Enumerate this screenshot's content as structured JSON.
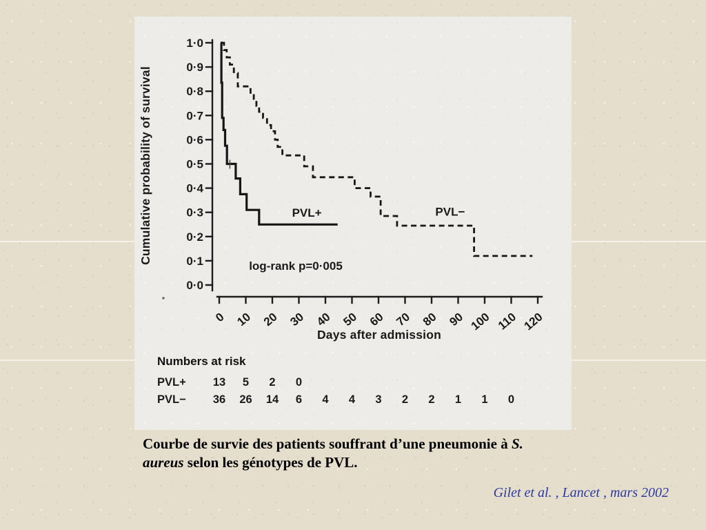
{
  "slide": {
    "caption": {
      "line1_roman": "Courbe de survie des patients souffrant d’une pneumonie à ",
      "line1_italic": "S.",
      "line2_italic": "aureus",
      "line2_roman": " selon les génotypes de PVL."
    },
    "credit": "Gilet et al. , Lancet , mars 2002",
    "colors": {
      "background": "#e5decc",
      "scan_background": "#edece9",
      "curve": "#161616",
      "caption_text": "#000000",
      "credit_text": "#2c3aa0"
    }
  },
  "chart_data": {
    "type": "line",
    "subtype": "kaplan-meier-step",
    "title": "",
    "xlabel": "Days after admission",
    "ylabel": "Cumulative probability of survival",
    "xlim": [
      0,
      120
    ],
    "ylim": [
      0.0,
      1.0
    ],
    "grid": "off",
    "x_ticks": [
      0,
      10,
      20,
      30,
      40,
      50,
      60,
      70,
      80,
      90,
      100,
      110,
      120
    ],
    "y_ticks": [
      {
        "value": 1.0,
        "label": "1·0"
      },
      {
        "value": 0.9,
        "label": "0·9"
      },
      {
        "value": 0.8,
        "label": "0·8"
      },
      {
        "value": 0.7,
        "label": "0·7"
      },
      {
        "value": 0.6,
        "label": "0·6"
      },
      {
        "value": 0.5,
        "label": "0·5"
      },
      {
        "value": 0.4,
        "label": "0·4"
      },
      {
        "value": 0.3,
        "label": "0·3"
      },
      {
        "value": 0.2,
        "label": "0·2"
      },
      {
        "value": 0.1,
        "label": "0·1"
      },
      {
        "value": 0.0,
        "label": "0·0"
      }
    ],
    "annotation": "log-rank p=0·005",
    "series": [
      {
        "name": "PVL+",
        "style": "solid",
        "label_pos": {
          "day": 33,
          "survival": 0.282
        },
        "steps": [
          [
            0.5,
            1.0
          ],
          [
            0.8,
            0.835
          ],
          [
            1.1,
            0.69
          ],
          [
            1.6,
            0.64
          ],
          [
            2.2,
            0.575
          ],
          [
            2.9,
            0.5
          ],
          [
            6.2,
            0.44
          ],
          [
            7.9,
            0.375
          ],
          [
            10.3,
            0.31
          ],
          [
            15,
            0.25
          ],
          [
            44.6,
            0.25
          ]
        ],
        "censor_marks": [
          {
            "day": 4,
            "survival": 0.5
          }
        ]
      },
      {
        "name": "PVL−",
        "style": "dashed",
        "label_pos": {
          "day": 87,
          "survival": 0.287
        },
        "steps": [
          [
            0.8,
            1.0
          ],
          [
            1.8,
            0.97
          ],
          [
            2.8,
            0.94
          ],
          [
            4,
            0.91
          ],
          [
            5.5,
            0.875
          ],
          [
            7,
            0.82
          ],
          [
            11.8,
            0.79
          ],
          [
            13,
            0.765
          ],
          [
            14,
            0.74
          ],
          [
            15,
            0.715
          ],
          [
            16.5,
            0.69
          ],
          [
            18,
            0.66
          ],
          [
            19.5,
            0.635
          ],
          [
            21,
            0.6
          ],
          [
            22,
            0.57
          ],
          [
            23.8,
            0.535
          ],
          [
            32,
            0.49
          ],
          [
            35.3,
            0.445
          ],
          [
            51,
            0.4
          ],
          [
            57,
            0.365
          ],
          [
            60.8,
            0.285
          ],
          [
            67,
            0.245
          ],
          [
            96,
            0.12
          ],
          [
            118,
            0.12
          ]
        ],
        "censor_marks": []
      }
    ],
    "numbers_at_risk": {
      "title": "Numbers at risk",
      "days": [
        0,
        10,
        20,
        30,
        40,
        50,
        60,
        70,
        80,
        90,
        100,
        110
      ],
      "rows": [
        {
          "name": "PVL+",
          "values": [
            13,
            5,
            2,
            0
          ]
        },
        {
          "name": "PVL−",
          "values": [
            36,
            26,
            14,
            6,
            4,
            4,
            3,
            2,
            2,
            1,
            1,
            0
          ]
        }
      ]
    }
  }
}
